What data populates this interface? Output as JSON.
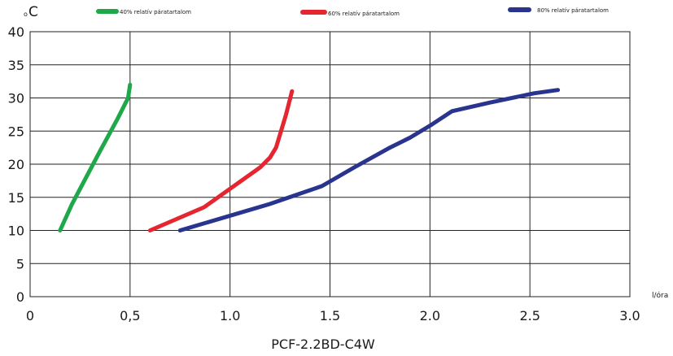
{
  "chart_data": {
    "type": "line",
    "title": "PCF-2.2BD-C4W",
    "ylabel": "C",
    "ylabel_prefix": "o",
    "xlabel": "l/óra",
    "xlim": [
      0,
      3.0
    ],
    "ylim": [
      0,
      40
    ],
    "x_ticks": [
      {
        "value": 0,
        "label": "0"
      },
      {
        "value": 0.5,
        "label": "0,5"
      },
      {
        "value": 1.0,
        "label": "1.0"
      },
      {
        "value": 1.5,
        "label": "1.5"
      },
      {
        "value": 2.0,
        "label": "2.0"
      },
      {
        "value": 2.5,
        "label": "2.5"
      },
      {
        "value": 3.0,
        "label": "3.0"
      }
    ],
    "y_ticks": [
      {
        "value": 0,
        "label": "0"
      },
      {
        "value": 5,
        "label": "5"
      },
      {
        "value": 10,
        "label": "10"
      },
      {
        "value": 15,
        "label": "15"
      },
      {
        "value": 20,
        "label": "20"
      },
      {
        "value": 25,
        "label": "25"
      },
      {
        "value": 30,
        "label": "30"
      },
      {
        "value": 35,
        "label": "35"
      },
      {
        "value": 40,
        "label": "40"
      }
    ],
    "grid": true,
    "legend_position": "top",
    "series": [
      {
        "name": "40% relatív páratartalom",
        "color": "#1fa84a",
        "points": [
          [
            0.15,
            10
          ],
          [
            0.21,
            14
          ],
          [
            0.28,
            18
          ],
          [
            0.35,
            22
          ],
          [
            0.44,
            27
          ],
          [
            0.49,
            30
          ],
          [
            0.5,
            32
          ]
        ]
      },
      {
        "name": "60% relatív páratartalom",
        "color": "#e52530",
        "points": [
          [
            0.6,
            10
          ],
          [
            0.87,
            13.5
          ],
          [
            1.15,
            19.5
          ],
          [
            1.2,
            21
          ],
          [
            1.23,
            22.5
          ],
          [
            1.28,
            27.5
          ],
          [
            1.31,
            31
          ]
        ]
      },
      {
        "name": "80% relatív páratartalom",
        "color": "#29348f",
        "points": [
          [
            0.75,
            10
          ],
          [
            1.2,
            14
          ],
          [
            1.46,
            16.7
          ],
          [
            1.62,
            19.5
          ],
          [
            1.8,
            22.5
          ],
          [
            1.9,
            24
          ],
          [
            2.01,
            26
          ],
          [
            2.11,
            28
          ],
          [
            2.3,
            29.3
          ],
          [
            2.52,
            30.7
          ],
          [
            2.64,
            31.2
          ]
        ]
      }
    ]
  }
}
